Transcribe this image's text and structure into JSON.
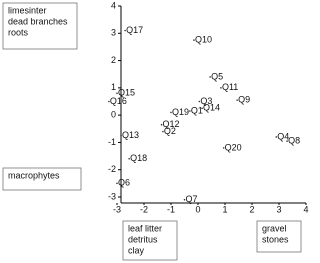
{
  "chart_data": {
    "type": "scatter",
    "labels": [
      "Q17",
      "Q10",
      "Q5",
      "Q11",
      "Q15",
      "Q16",
      "Q3",
      "Q9",
      "Q19",
      "Q1",
      "Q14",
      "Q12",
      "Q2",
      "Q13",
      "Q4",
      "Q8",
      "Q20",
      "Q18",
      "Q6",
      "Q7"
    ],
    "x": [
      -2.7,
      -0.15,
      0.45,
      0.85,
      -3.0,
      -3.3,
      0.05,
      1.45,
      -1.0,
      -0.3,
      0.15,
      -1.35,
      -1.3,
      -2.85,
      2.9,
      3.3,
      0.95,
      -2.55,
      -3.0,
      -0.5
    ],
    "y": [
      3.1,
      2.75,
      1.4,
      1.0,
      0.8,
      0.5,
      0.5,
      0.55,
      0.1,
      0.15,
      0.25,
      -0.35,
      -0.6,
      -0.75,
      -0.8,
      -0.95,
      -1.2,
      -1.6,
      -2.5,
      -3.1
    ],
    "xlim": [
      -3,
      4
    ],
    "ylim": [
      -3,
      4
    ],
    "xticks": [
      -3,
      -2,
      -1,
      0,
      1,
      2,
      3,
      4
    ],
    "yticks": [
      -3,
      -2,
      -1,
      0,
      1,
      2,
      3,
      4
    ],
    "annotations": [
      {
        "lines": [
          "limesinter",
          "dead branches",
          "roots"
        ]
      },
      {
        "lines": [
          "macrophytes"
        ]
      },
      {
        "lines": [
          "leaf litter",
          "detritus",
          "clay"
        ]
      },
      {
        "lines": [
          "gravel",
          "stones"
        ]
      }
    ]
  }
}
